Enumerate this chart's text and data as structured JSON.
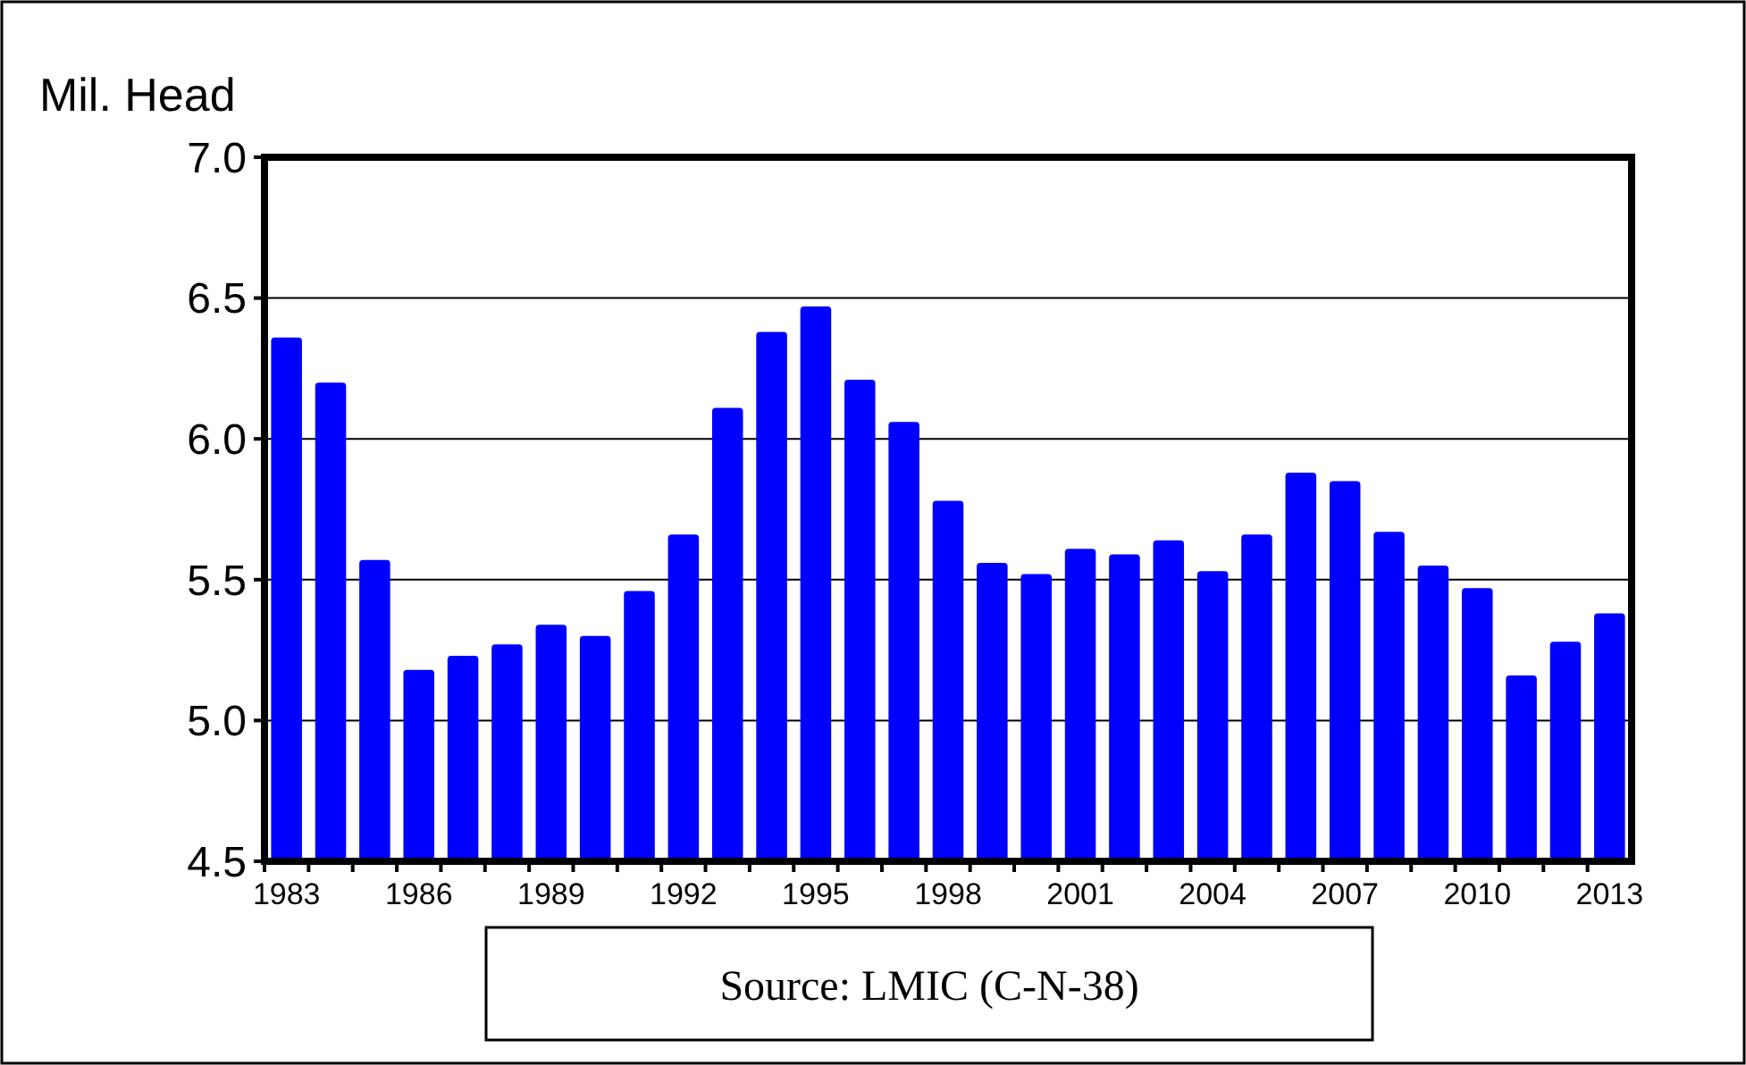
{
  "chart_data": {
    "type": "bar",
    "ylabel": "Mil. Head",
    "categories": [
      "1983",
      null,
      null,
      "1986",
      null,
      null,
      "1989",
      null,
      null,
      "1992",
      null,
      null,
      "1995",
      null,
      null,
      "1998",
      null,
      null,
      "2001",
      null,
      null,
      "2004",
      null,
      null,
      "2007",
      null,
      null,
      "2010",
      null,
      null,
      "2013"
    ],
    "values": [
      6.36,
      6.2,
      5.57,
      5.18,
      5.23,
      5.27,
      5.34,
      5.3,
      5.46,
      5.66,
      6.11,
      6.38,
      6.47,
      6.21,
      6.06,
      5.78,
      5.56,
      5.52,
      5.61,
      5.59,
      5.64,
      5.53,
      5.66,
      5.88,
      5.85,
      5.67,
      5.55,
      5.47,
      5.16,
      5.28,
      5.38
    ],
    "color": "#0000ff",
    "ylim": [
      4.5,
      7.0
    ],
    "yticks": [
      {
        "value": 4.5,
        "label": "4.5"
      },
      {
        "value": 5,
        "label": "5.0"
      },
      {
        "value": 5.5,
        "label": "5.5"
      },
      {
        "value": 6,
        "label": "6.0"
      },
      {
        "value": 6.5,
        "label": "6.5"
      },
      {
        "value": 7,
        "label": "7.0"
      }
    ],
    "grid": "y",
    "annotations": [
      "Source: LMIC (C-N-38)"
    ]
  }
}
